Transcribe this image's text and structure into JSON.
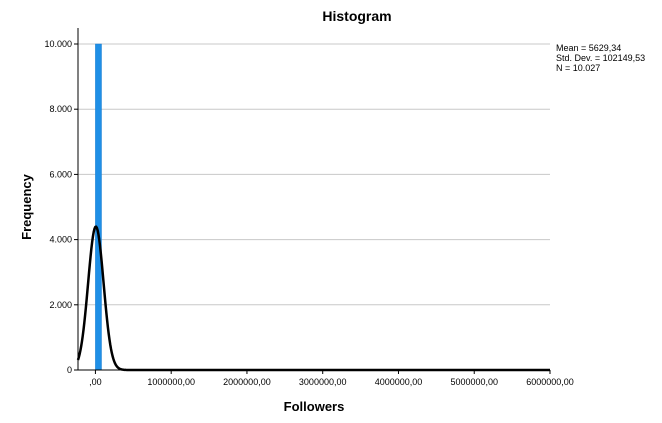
{
  "chart_data": {
    "type": "bar",
    "title": "Histogram",
    "xlabel": "Followers",
    "ylabel": "Frequency",
    "xlim": [
      -230000,
      6000000
    ],
    "ylim": [
      0,
      10000
    ],
    "x_ticks": [
      0,
      1000000,
      2000000,
      3000000,
      4000000,
      5000000,
      6000000
    ],
    "x_tick_labels": [
      ",00",
      "1000000,00",
      "2000000,00",
      "3000000,00",
      "4000000,00",
      "5000000,00",
      "6000000,00"
    ],
    "y_ticks": [
      0,
      2000,
      4000,
      6000,
      8000,
      10000
    ],
    "y_tick_labels": [
      "0",
      "2.000",
      "4.000",
      "6.000",
      "8.000",
      "10.000"
    ],
    "bars": [
      {
        "x_start": 0,
        "x_end": 80000,
        "frequency": 10000
      }
    ],
    "bar_color": "#1f8fe6",
    "normal_curve": {
      "mean": 5629.34,
      "std_dev": 102149.53,
      "peak_frequency": 4400,
      "color": "#000000"
    },
    "stats": {
      "mean": "Mean = 5629,34",
      "std_dev": "Std. Dev. = 102149,53",
      "n": "N = 10.027"
    },
    "grid": true
  }
}
